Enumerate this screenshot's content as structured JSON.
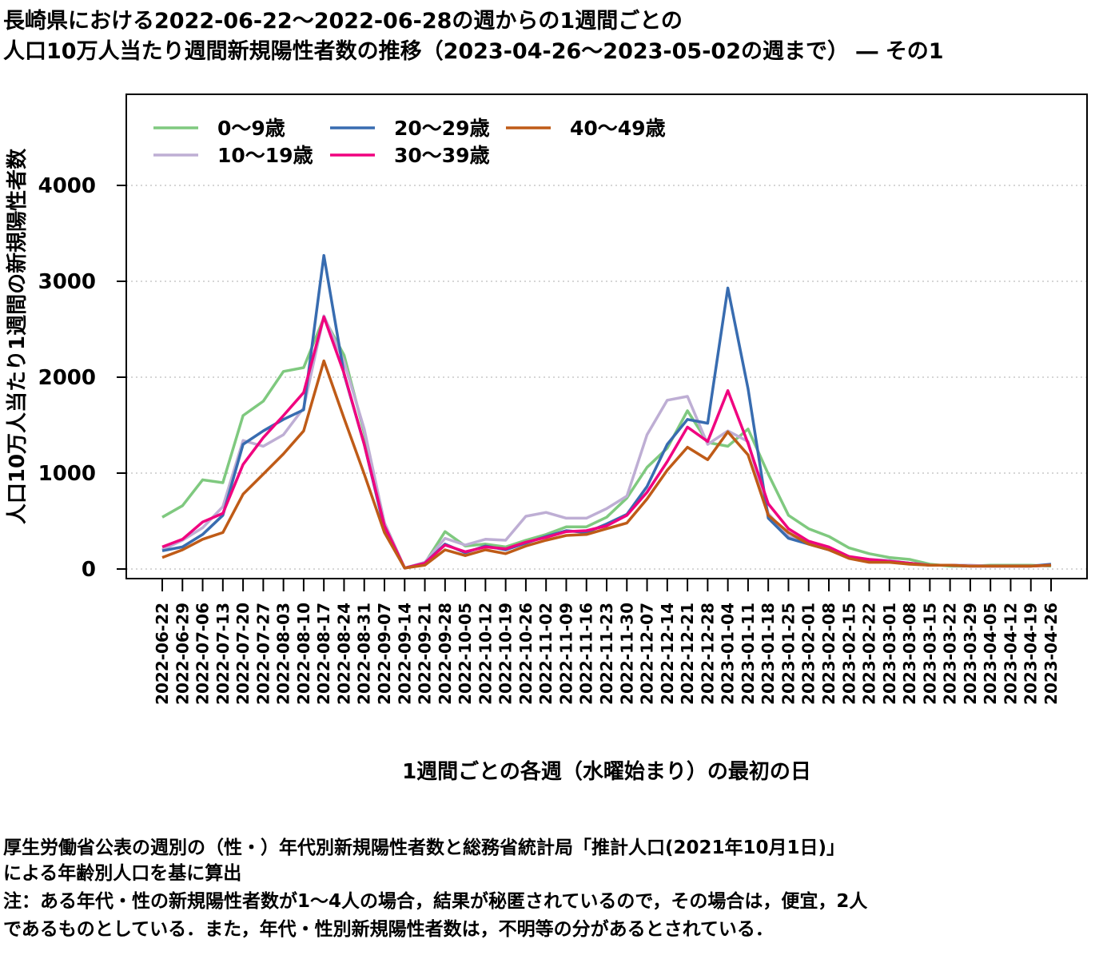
{
  "title": {
    "line1": "長崎県における2022-06-22～2022-06-28の週からの1週間ごとの",
    "line2": "人口10万人当たり週間新規陽性者数の推移（2023-04-26～2023-05-02の週まで） ― その1"
  },
  "notes": {
    "line1": "厚生労働省公表の週別の（性・）年代別新規陽性者数と総務省統計局「推計人口(2021年10月1日)」",
    "line2": "による年齢別人口を基に算出",
    "line3": "注：ある年代・性の新規陽性者数が1～4人の場合，結果が秘匿されているので，その場合は，便宜，2人",
    "line4": "であるものとしている．また，年代・性別新規陽性者数は，不明等の分があるとされている．"
  },
  "chart_data": {
    "type": "line",
    "xlabel": "1週間ごとの各週（水曜始まり）の最初の日",
    "ylabel": "人口10万人当たり1週間の新規陽性者数",
    "ylim": [
      -100,
      4950
    ],
    "yticks": [
      0,
      1000,
      2000,
      3000,
      4000
    ],
    "grid": "horizontal dotted",
    "legend_position": "top-left",
    "categories": [
      "2022-06-22",
      "2022-06-29",
      "2022-07-06",
      "2022-07-13",
      "2022-07-20",
      "2022-07-27",
      "2022-08-03",
      "2022-08-10",
      "2022-08-17",
      "2022-08-24",
      "2022-08-31",
      "2022-09-07",
      "2022-09-14",
      "2022-09-21",
      "2022-09-28",
      "2022-10-05",
      "2022-10-12",
      "2022-10-19",
      "2022-10-26",
      "2022-11-02",
      "2022-11-09",
      "2022-11-16",
      "2022-11-23",
      "2022-11-30",
      "2022-12-07",
      "2022-12-14",
      "2022-12-21",
      "2022-12-28",
      "2023-01-04",
      "2023-01-11",
      "2023-01-18",
      "2023-01-25",
      "2023-02-01",
      "2023-02-08",
      "2023-02-15",
      "2023-02-22",
      "2023-03-01",
      "2023-03-08",
      "2023-03-15",
      "2023-03-22",
      "2023-03-29",
      "2023-04-05",
      "2023-04-12",
      "2023-04-19",
      "2023-04-26"
    ],
    "series": [
      {
        "name": "0～9歳",
        "color": "#7fc97f",
        "values": [
          540,
          660,
          930,
          900,
          1600,
          1750,
          2060,
          2100,
          2620,
          2230,
          1420,
          480,
          10,
          60,
          390,
          240,
          260,
          230,
          300,
          360,
          440,
          440,
          540,
          740,
          1060,
          1260,
          1650,
          1320,
          1280,
          1460,
          990,
          560,
          420,
          340,
          220,
          160,
          120,
          100,
          50,
          30,
          30,
          40,
          40,
          40,
          30
        ]
      },
      {
        "name": "10～19歳",
        "color": "#beaed4",
        "values": [
          200,
          300,
          430,
          650,
          1340,
          1280,
          1400,
          1680,
          2640,
          2160,
          1460,
          480,
          10,
          70,
          320,
          250,
          310,
          300,
          550,
          590,
          530,
          530,
          630,
          760,
          1400,
          1760,
          1800,
          1300,
          1440,
          1330,
          580,
          340,
          260,
          200,
          120,
          100,
          90,
          60,
          40,
          40,
          40,
          30,
          30,
          30,
          40
        ]
      },
      {
        "name": "20～29歳",
        "color": "#386cb0",
        "values": [
          190,
          230,
          360,
          560,
          1300,
          1440,
          1560,
          1660,
          3270,
          2030,
          1300,
          420,
          10,
          60,
          260,
          170,
          240,
          200,
          270,
          340,
          400,
          380,
          470,
          570,
          860,
          1300,
          1560,
          1520,
          2930,
          1880,
          530,
          320,
          260,
          200,
          120,
          90,
          80,
          60,
          40,
          40,
          30,
          30,
          30,
          30,
          50
        ]
      },
      {
        "name": "30～39歳",
        "color": "#f0027f",
        "values": [
          230,
          310,
          490,
          580,
          1090,
          1370,
          1600,
          1840,
          2630,
          2040,
          1300,
          450,
          10,
          60,
          250,
          180,
          230,
          210,
          280,
          330,
          390,
          400,
          450,
          560,
          800,
          1120,
          1480,
          1330,
          1860,
          1310,
          680,
          420,
          290,
          230,
          130,
          100,
          80,
          60,
          40,
          40,
          30,
          30,
          30,
          30,
          40
        ]
      },
      {
        "name": "40～49歳",
        "color": "#bf5b17",
        "values": [
          120,
          200,
          310,
          380,
          780,
          990,
          1200,
          1440,
          2170,
          1570,
          990,
          380,
          10,
          40,
          200,
          140,
          200,
          160,
          240,
          300,
          350,
          360,
          420,
          480,
          730,
          1030,
          1270,
          1140,
          1430,
          1190,
          560,
          380,
          260,
          200,
          110,
          70,
          70,
          50,
          40,
          40,
          30,
          30,
          30,
          30,
          40
        ]
      }
    ]
  }
}
